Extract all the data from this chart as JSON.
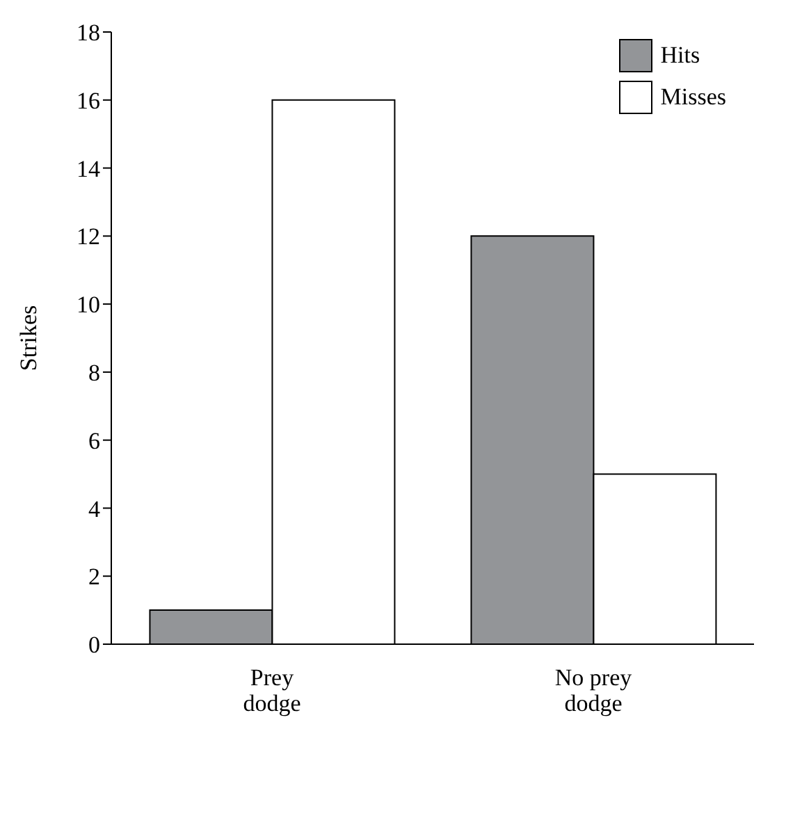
{
  "chart_data": {
    "type": "bar",
    "ylabel": "Strikes",
    "categories": [
      "Prey dodge",
      "No prey dodge"
    ],
    "series": [
      {
        "name": "Hits",
        "color": "#939598",
        "values": [
          1,
          12
        ]
      },
      {
        "name": "Misses",
        "color": "#ffffff",
        "values": [
          16,
          5
        ]
      }
    ],
    "ylim": [
      0,
      18
    ],
    "yticks": [
      0,
      2,
      4,
      6,
      8,
      10,
      12,
      14,
      16,
      18
    ],
    "grid": false,
    "legend": "top right"
  }
}
